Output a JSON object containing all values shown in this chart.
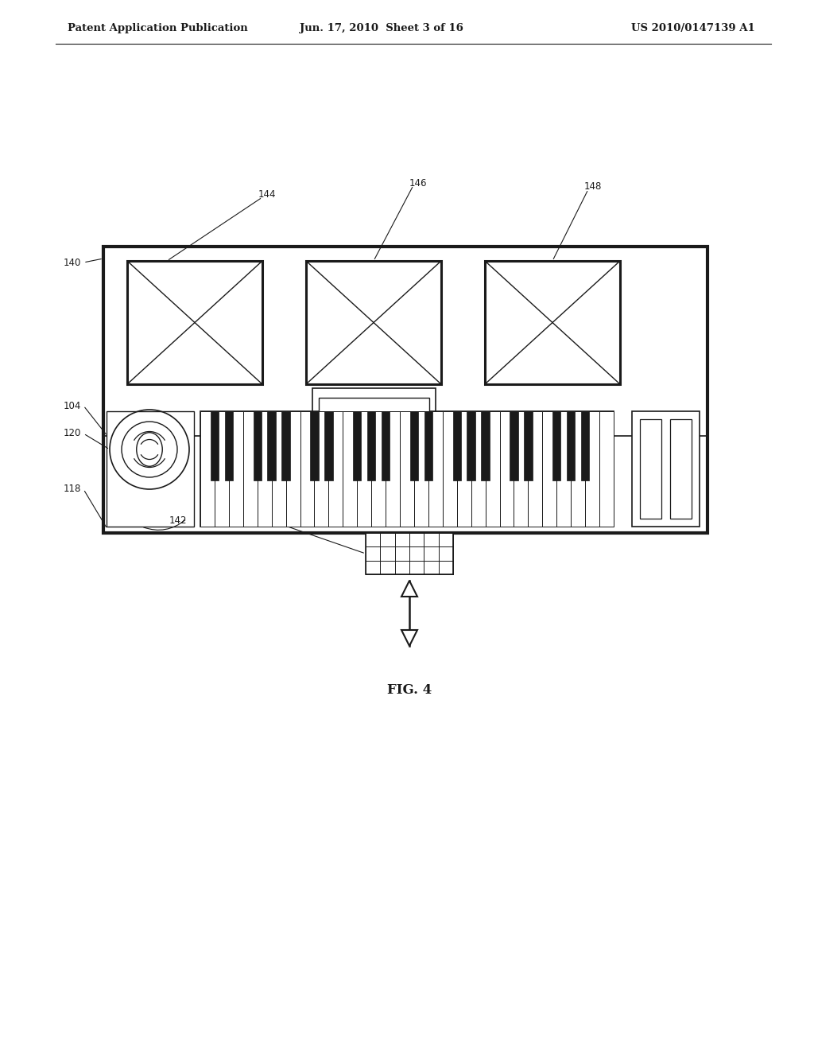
{
  "bg_color": "#ffffff",
  "line_color": "#1a1a1a",
  "header_left": "Patent Application Publication",
  "header_center": "Jun. 17, 2010  Sheet 3 of 16",
  "header_right": "US 2010/0147139 A1",
  "figure_label": "FIG. 4",
  "fig_w": 10.24,
  "fig_h": 13.2,
  "dpi": 100
}
